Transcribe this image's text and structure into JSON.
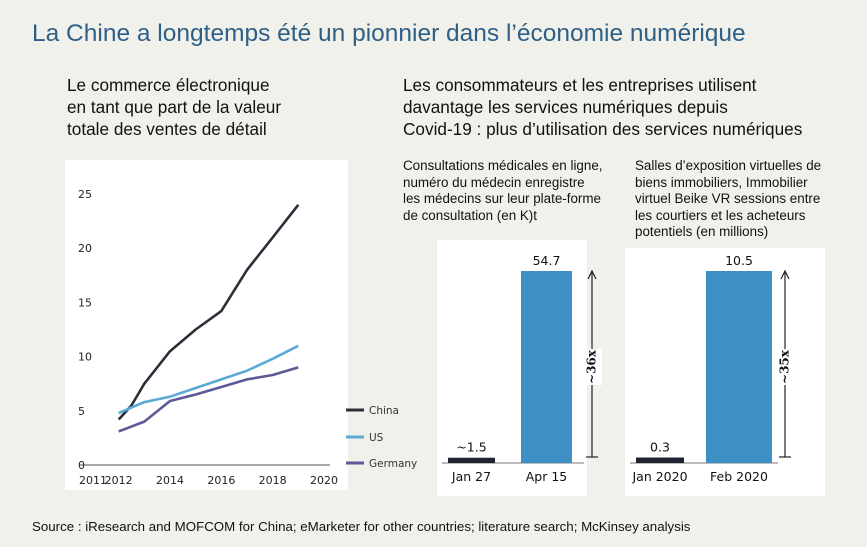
{
  "title": "La Chine a longtemps été un pionnier dans l’économie numérique",
  "left_heading": [
    "Le commerce électronique",
    "en tant que part de la valeur",
    "totale des ventes de détail"
  ],
  "right_heading": [
    "Les consommateurs et les entreprises utilisent",
    "davantage les services numériques depuis",
    "Covid-19 : plus d’utilisation des services numériques"
  ],
  "panel_a_caption": [
    "Consultations médicales en ligne,",
    "numéro du médecin enregistre",
    "les médecins sur leur plate-forme",
    "de consultation (en K)t"
  ],
  "panel_b_caption": [
    "Salles d’exposition virtuelles de",
    "biens immobiliers, Immobilier",
    "virtuel Beike VR sessions entre",
    "les courtiers et les acheteurs",
    "potentiels (en millions)"
  ],
  "source": "Source : iResearch and MOFCOM for China; eMarketer for other countries; literature search; McKinsey analysis",
  "colors": {
    "china": "#2b2f3a",
    "us": "#5aaad6",
    "germany": "#5b5a96",
    "bar_dark": "#1f2430",
    "bar_blue": "#3d8fc6",
    "title": "#2f5f86"
  },
  "chart_data": [
    {
      "type": "line",
      "x_ticks": [
        2011,
        2012,
        2014,
        2016,
        2018,
        2020
      ],
      "y_ticks": [
        0,
        5,
        10,
        15,
        20,
        25
      ],
      "xlim": [
        2011,
        2020
      ],
      "ylim": [
        0,
        25
      ],
      "legend_position": "right",
      "series": [
        {
          "name": "China",
          "color": "#2b2f3a",
          "x": [
            2012,
            2012.5,
            2013,
            2014,
            2015,
            2016,
            2017,
            2018,
            2019
          ],
          "y": [
            4.2,
            5.5,
            7.5,
            10.5,
            12.5,
            14.2,
            18,
            21,
            24
          ]
        },
        {
          "name": "US",
          "color": "#5aaad6",
          "x": [
            2012,
            2013,
            2014,
            2015,
            2016,
            2017,
            2018,
            2019
          ],
          "y": [
            4.8,
            5.8,
            6.3,
            7.1,
            7.9,
            8.7,
            9.8,
            11
          ]
        },
        {
          "name": "Germany",
          "color": "#5b5a96",
          "x": [
            2012,
            2013,
            2014,
            2015,
            2016,
            2017,
            2018,
            2019
          ],
          "y": [
            3.1,
            4,
            5.9,
            6.5,
            7.2,
            7.9,
            8.3,
            9
          ]
        }
      ]
    },
    {
      "type": "bar",
      "categories": [
        "Jan 27",
        "Apr 15"
      ],
      "values": [
        1.5,
        54.7
      ],
      "value_labels": [
        "~1.5",
        "54.7"
      ],
      "ylim": [
        0,
        54.7
      ],
      "annotation": "~36x"
    },
    {
      "type": "bar",
      "categories": [
        "Jan 2020",
        "Feb 2020"
      ],
      "values": [
        0.3,
        10.5
      ],
      "value_labels": [
        "0.3",
        "10.5"
      ],
      "ylim": [
        0,
        10.5
      ],
      "annotation": "~35x"
    }
  ]
}
